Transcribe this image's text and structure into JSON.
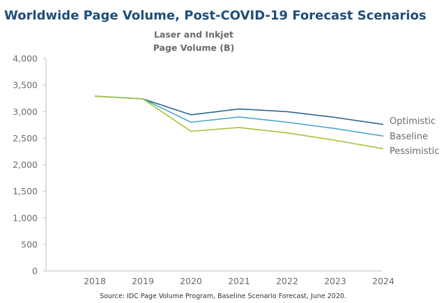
{
  "chart_data": {
    "type": "line",
    "title": "Worldwide Page Volume, Post-COVID-19 Forecast Scenarios",
    "ylabel_line1": "Laser and Inkjet",
    "ylabel_line2": "Page Volume (B)",
    "xlabel": "",
    "x": [
      "2018",
      "2019",
      "2020",
      "2021",
      "2022",
      "2023",
      "2024"
    ],
    "ylim": [
      0,
      4000
    ],
    "yticks": [
      0,
      500,
      1000,
      1500,
      2000,
      2500,
      3000,
      3500,
      4000
    ],
    "ytick_labels": [
      "0",
      "500",
      "1,000",
      "1,500",
      "2,000",
      "2,500",
      "3,000",
      "3,500",
      "4,000"
    ],
    "grid": false,
    "legend_placement": "right, at line ends",
    "series": [
      {
        "name": "Optimistic",
        "color": "#2d6a8e",
        "values": [
          3290,
          3240,
          2940,
          3050,
          3000,
          2890,
          2760
        ]
      },
      {
        "name": "Baseline",
        "color": "#4aa8c8",
        "values": [
          3290,
          3240,
          2800,
          2900,
          2800,
          2680,
          2540
        ]
      },
      {
        "name": "Pessimistic",
        "color": "#a8c23c",
        "values": [
          3290,
          3240,
          2630,
          2700,
          2600,
          2460,
          2300
        ]
      }
    ],
    "source": "Source:  IDC Page Volume Program, Baseline Scenario Forecast, June 2020."
  }
}
